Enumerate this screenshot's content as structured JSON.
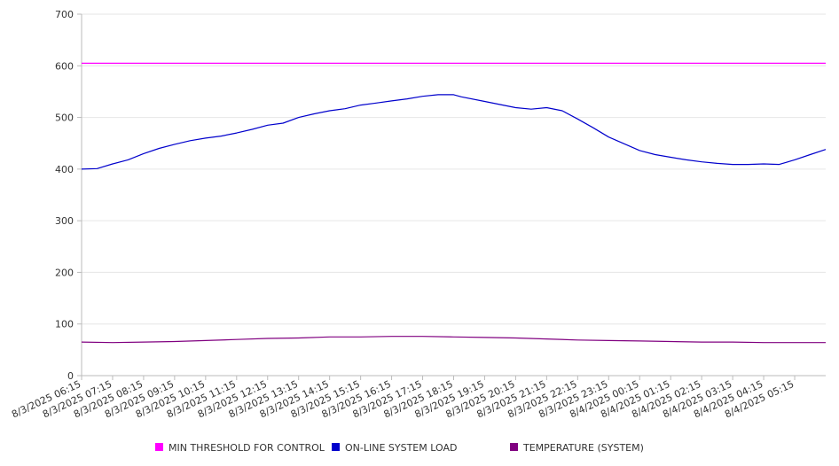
{
  "chart_data": {
    "type": "line",
    "title": "",
    "xlabel": "",
    "ylabel": "",
    "ylim": [
      0,
      700
    ],
    "y_ticks": [
      0,
      100,
      200,
      300,
      400,
      500,
      600,
      700
    ],
    "x_tick_labels": [
      "8/3/2025 06:15",
      "8/3/2025 07:15",
      "8/3/2025 08:15",
      "8/3/2025 09:15",
      "8/3/2025 10:15",
      "8/3/2025 11:15",
      "8/3/2025 12:15",
      "8/3/2025 13:15",
      "8/3/2025 14:15",
      "8/3/2025 15:15",
      "8/3/2025 16:15",
      "8/3/2025 17:15",
      "8/3/2025 18:15",
      "8/3/2025 19:15",
      "8/3/2025 20:15",
      "8/3/2025 21:15",
      "8/3/2025 22:15",
      "8/3/2025 23:15",
      "8/4/2025 00:15",
      "8/4/2025 01:15",
      "8/4/2025 02:15",
      "8/4/2025 03:15",
      "8/4/2025 04:15",
      "8/4/2025 05:15"
    ],
    "x_range": [
      "8/3/2025 06:15",
      "8/4/2025 06:15"
    ],
    "grid": "horizontal",
    "legend_position": "bottom",
    "series": [
      {
        "name": "MIN THRESHOLD FOR CONTROL",
        "color": "#ff00ff",
        "points": [
          [
            "8/3/2025 06:15",
            605
          ],
          [
            "8/4/2025 06:15",
            605
          ]
        ]
      },
      {
        "name": "ON-LINE SYSTEM LOAD",
        "color": "#0000cc",
        "points": [
          [
            "8/3/2025 06:15",
            400
          ],
          [
            "8/3/2025 06:45",
            401
          ],
          [
            "8/3/2025 07:15",
            410
          ],
          [
            "8/3/2025 07:45",
            418
          ],
          [
            "8/3/2025 08:15",
            430
          ],
          [
            "8/3/2025 08:45",
            440
          ],
          [
            "8/3/2025 09:15",
            448
          ],
          [
            "8/3/2025 09:45",
            455
          ],
          [
            "8/3/2025 10:15",
            460
          ],
          [
            "8/3/2025 10:45",
            464
          ],
          [
            "8/3/2025 11:15",
            470
          ],
          [
            "8/3/2025 11:45",
            477
          ],
          [
            "8/3/2025 12:15",
            485
          ],
          [
            "8/3/2025 12:45",
            489
          ],
          [
            "8/3/2025 13:15",
            500
          ],
          [
            "8/3/2025 13:45",
            507
          ],
          [
            "8/3/2025 14:15",
            513
          ],
          [
            "8/3/2025 14:45",
            517
          ],
          [
            "8/3/2025 15:15",
            524
          ],
          [
            "8/3/2025 15:45",
            528
          ],
          [
            "8/3/2025 16:15",
            532
          ],
          [
            "8/3/2025 16:45",
            536
          ],
          [
            "8/3/2025 17:15",
            541
          ],
          [
            "8/3/2025 17:45",
            544
          ],
          [
            "8/3/2025 18:15",
            544
          ],
          [
            "8/3/2025 18:30",
            540
          ],
          [
            "8/3/2025 19:15",
            531
          ],
          [
            "8/3/2025 19:45",
            525
          ],
          [
            "8/3/2025 20:15",
            519
          ],
          [
            "8/3/2025 20:45",
            516
          ],
          [
            "8/3/2025 21:15",
            519
          ],
          [
            "8/3/2025 21:45",
            513
          ],
          [
            "8/3/2025 22:15",
            497
          ],
          [
            "8/3/2025 22:45",
            480
          ],
          [
            "8/3/2025 23:15",
            462
          ],
          [
            "8/3/2025 23:45",
            449
          ],
          [
            "8/4/2025 00:15",
            436
          ],
          [
            "8/4/2025 00:45",
            428
          ],
          [
            "8/4/2025 01:15",
            423
          ],
          [
            "8/4/2025 01:45",
            418
          ],
          [
            "8/4/2025 02:15",
            414
          ],
          [
            "8/4/2025 02:45",
            411
          ],
          [
            "8/4/2025 03:15",
            409
          ],
          [
            "8/4/2025 03:45",
            409
          ],
          [
            "8/4/2025 04:15",
            410
          ],
          [
            "8/4/2025 04:45",
            409
          ],
          [
            "8/4/2025 05:15",
            418
          ],
          [
            "8/4/2025 05:45",
            428
          ],
          [
            "8/4/2025 06:15",
            438
          ]
        ]
      },
      {
        "name": "TEMPERATURE (SYSTEM)",
        "color": "#800080",
        "points": [
          [
            "8/3/2025 06:15",
            65
          ],
          [
            "8/3/2025 07:15",
            64
          ],
          [
            "8/3/2025 08:15",
            65
          ],
          [
            "8/3/2025 09:15",
            66
          ],
          [
            "8/3/2025 10:15",
            68
          ],
          [
            "8/3/2025 11:15",
            70
          ],
          [
            "8/3/2025 12:15",
            72
          ],
          [
            "8/3/2025 13:15",
            73
          ],
          [
            "8/3/2025 14:15",
            75
          ],
          [
            "8/3/2025 15:15",
            75
          ],
          [
            "8/3/2025 16:15",
            76
          ],
          [
            "8/3/2025 17:15",
            76
          ],
          [
            "8/3/2025 18:15",
            75
          ],
          [
            "8/3/2025 19:15",
            74
          ],
          [
            "8/3/2025 20:15",
            73
          ],
          [
            "8/3/2025 21:15",
            71
          ],
          [
            "8/3/2025 22:15",
            69
          ],
          [
            "8/3/2025 23:15",
            68
          ],
          [
            "8/4/2025 00:15",
            67
          ],
          [
            "8/4/2025 01:15",
            66
          ],
          [
            "8/4/2025 02:15",
            65
          ],
          [
            "8/4/2025 03:15",
            65
          ],
          [
            "8/4/2025 04:15",
            64
          ],
          [
            "8/4/2025 05:15",
            64
          ],
          [
            "8/4/2025 06:15",
            64
          ]
        ]
      }
    ]
  }
}
